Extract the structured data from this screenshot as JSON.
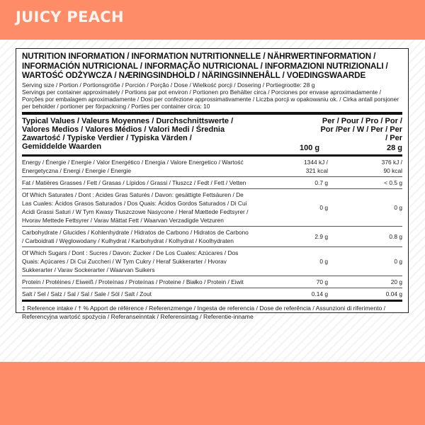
{
  "header": {
    "title": "JUICY PEACH"
  },
  "label": {
    "heading": "NUTRITION INFORMATION / INFORMATION  NUTRITIONNELLE / NÄHRWERTINFORMATION / INFORMACIÓN NUTRICIONAL / INFORMAÇÃO NUTRICIONAL / INFORMAZIONI NUTRIZIONALI / WARTOŚĆ ODŻYWCZA / NÆRINGSINDHOLD / NÄRINGSINNEHÅLL / VOEDINGSWAARDE",
    "serving_size": "Serving size / Portion / Portionsgröße / Porción / Porção / Dose / Wielkość porcji / Dosering / Portiegrootte: 28 g",
    "servings_per_container": "Servings per container approximately / Portions par pot environ / Portionen pro Behälter circa / Porciones por envase aproximadamente / Porções por embalagem aproximadamente / Dosi per confezione approssimativamente / Liczba porcji w opakowaniu ok. / Cirka antall porsjoner per beholder / portioner per förpackning / Porties per container circa: 10",
    "table": {
      "header_label": "Typical Values / Valeurs Moyennes / Durchschnittswerte / Valores Medios / Valores Médios / Valori Medi / Średnia Zawartość / Typiske Verdier / Typiska Värden / Gemiddelde Waarden",
      "col1_label": "Per / Pour / Pro / Por / Por /Per / W / Per / Per / Per",
      "col1_unit": "100 g",
      "col2_unit": "28 g",
      "rows": [
        {
          "name": "Energy / Énergie / Energie / Valor Energético / Energia / Valore Energetico / Wartość Energetyczna / Energi / Energie / Energie",
          "per100": "1344 kJ / 321 kcal",
          "perServing": "376 kJ / 90 kcal"
        },
        {
          "name": "Fat / Matières Grasses / Fett / Grasas / Lípidos / Grassi / Tłuszcz / Fedt / Fett / Vetten",
          "per100": "0.7 g",
          "perServing": "< 0.5 g"
        },
        {
          "name": "Of Which Saturates / Dont : Acides Gras Saturés / Davon: gesättigte Fettsäuren / De Las Cuales: Ácidos Grasos Saturados / Dos Quais: Ácidos Gordos Saturados / Di Cui Acidi Grassi Saturi / W Tym Kwasy Tłuszczowe Nasycone / Heraf Mættede Fedtsyrer / Hvorav Mettede Fettsyrer / Varav Mättat Fett  / Waarvan Verzadigde Vetzuren",
          "per100": "0 g",
          "perServing": "0 g"
        },
        {
          "name": "Carbohydrate / Glucides / Kohlenhydrate / Hidratos de Carbono / Hidratos de Carbono / Carboidrati / Węglowodany / Kulhydrat / Karbohydrat / Kolhydrat  / Koolhydraten",
          "per100": "2.9 g",
          "perServing": "0.8 g"
        },
        {
          "name": "Of Which Sugars / Dont : Sucres / Davon: Zucker / De Los Cuales: Azúcares / Dos Quais: Açúcares / Di Cui Zuccheri / W Tym Cukry / Heraf Sukkerarter / Hvorav Sukkerarter / Varav Sockerarter / Waarvan Suikers",
          "per100": "0 g",
          "perServing": "0 g"
        },
        {
          "name": "Protein /  Protéines / Eiweiß / Proteínas / Proteínas / Proteine / Białko / Protein / Eiwit",
          "per100": "70 g",
          "perServing": "20 g"
        },
        {
          "name": "Salt  / Sel / Salz / Sal / Sal / Sale / Sól / Salt / Zout",
          "per100": "0.14 g",
          "perServing": "0.04 g"
        }
      ]
    },
    "footnote": "‡ Reference intake / † % Apport de référence / Referenzmenge / Ingesta de referencia / Dose de referência / Assunzioni di riferimento / Referencyjna wartość spożycia / Referanseinntak / Referensintag / Referentie-inname"
  },
  "colors": {
    "brand": "#ff8c69",
    "title_text": "#fff5ee"
  }
}
